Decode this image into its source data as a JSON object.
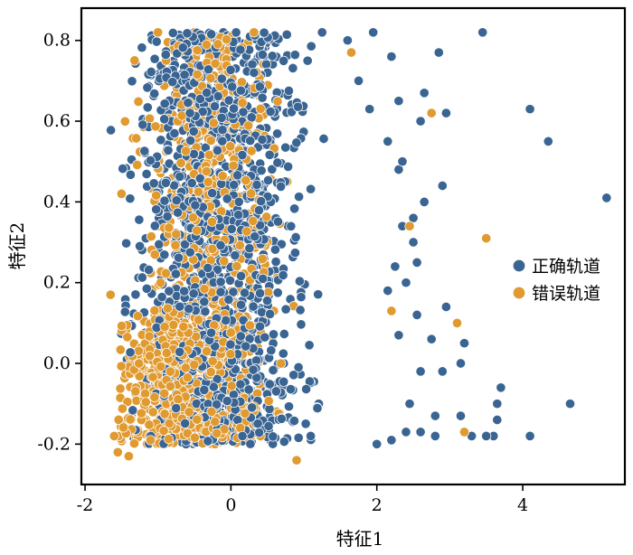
{
  "chart_data": {
    "type": "scatter",
    "xlabel": "特征1",
    "ylabel": "特征2",
    "xlim": [
      -2.05,
      5.4
    ],
    "ylim": [
      -0.3,
      0.88
    ],
    "x_ticks": [
      "-2",
      "0",
      "2",
      "4"
    ],
    "x_tick_values": [
      -2,
      0,
      2,
      4
    ],
    "y_ticks": [
      "-0.2",
      "0.0",
      "0.2",
      "0.4",
      "0.6",
      "0.8"
    ],
    "y_tick_values": [
      -0.2,
      0.0,
      0.2,
      0.4,
      0.6,
      0.8
    ],
    "grid": false,
    "legend_position": "right",
    "series": [
      {
        "name": "正确轨道",
        "color": "#3a6593",
        "points": [
          [
            3.45,
            0.82
          ],
          [
            4.1,
            0.63
          ],
          [
            4.35,
            0.55
          ],
          [
            5.15,
            0.41
          ],
          [
            4.65,
            -0.1
          ],
          [
            4.1,
            -0.18
          ],
          [
            3.7,
            -0.06
          ],
          [
            3.65,
            -0.1
          ],
          [
            3.65,
            -0.14
          ],
          [
            3.6,
            -0.18
          ],
          [
            3.5,
            -0.18
          ],
          [
            3.3,
            -0.18
          ],
          [
            3.15,
            -0.13
          ],
          [
            3.2,
            0.05
          ],
          [
            2.95,
            0.14
          ],
          [
            3.15,
            0.0
          ],
          [
            2.9,
            -0.02
          ],
          [
            2.9,
            0.44
          ],
          [
            2.95,
            0.62
          ],
          [
            2.85,
            0.77
          ],
          [
            2.65,
            0.4
          ],
          [
            2.55,
            0.25
          ],
          [
            2.5,
            0.3
          ],
          [
            2.5,
            0.36
          ],
          [
            2.35,
            0.34
          ],
          [
            2.3,
            0.48
          ],
          [
            2.35,
            0.5
          ],
          [
            2.15,
            0.55
          ],
          [
            2.3,
            0.65
          ],
          [
            2.6,
            0.6
          ],
          [
            2.65,
            0.67
          ],
          [
            2.2,
            0.76
          ],
          [
            1.95,
            0.82
          ],
          [
            1.6,
            0.8
          ],
          [
            1.25,
            0.82
          ],
          [
            1.9,
            0.63
          ],
          [
            1.75,
            0.7
          ],
          [
            2.25,
            0.24
          ],
          [
            2.15,
            0.18
          ],
          [
            2.4,
            0.2
          ],
          [
            2.3,
            0.07
          ],
          [
            2.6,
            -0.02
          ],
          [
            2.75,
            0.06
          ],
          [
            2.55,
            0.12
          ],
          [
            2.45,
            -0.1
          ],
          [
            2.8,
            -0.13
          ],
          [
            2.8,
            -0.18
          ],
          [
            2.6,
            -0.17
          ],
          [
            2.4,
            -0.17
          ],
          [
            2.2,
            -0.19
          ],
          [
            2.0,
            -0.2
          ]
        ]
      },
      {
        "name": "错误轨道",
        "color": "#e09a30",
        "points": [
          [
            3.5,
            0.31
          ],
          [
            2.75,
            0.62
          ],
          [
            2.45,
            0.34
          ],
          [
            2.2,
            0.13
          ],
          [
            3.1,
            0.1
          ],
          [
            3.2,
            -0.17
          ],
          [
            0.9,
            -0.24
          ],
          [
            -1.65,
            0.17
          ],
          [
            -1.55,
            -0.22
          ],
          [
            -1.5,
            0.42
          ],
          [
            -1.6,
            -0.18
          ],
          [
            1.65,
            0.77
          ],
          [
            -1.4,
            -0.23
          ],
          [
            -1.0,
            0.82
          ]
        ]
      }
    ],
    "dense_regions": [
      {
        "series": 0,
        "x": [
          -1.65,
          2.0
        ],
        "y": [
          -0.2,
          0.82
        ],
        "n": 1500,
        "x_spread": 1.0
      },
      {
        "series": 1,
        "x": [
          -1.7,
          1.8
        ],
        "y": [
          -0.2,
          0.82
        ],
        "n": 650,
        "x_spread": 0.8
      },
      {
        "series": 1,
        "x": [
          -1.6,
          0.8
        ],
        "y": [
          -0.2,
          0.12
        ],
        "n": 500,
        "x_spread": 0.75
      }
    ]
  },
  "legend": {
    "items": [
      {
        "label": "正确轨道",
        "color": "#3a6593"
      },
      {
        "label": "错误轨道",
        "color": "#e09a30"
      }
    ]
  }
}
